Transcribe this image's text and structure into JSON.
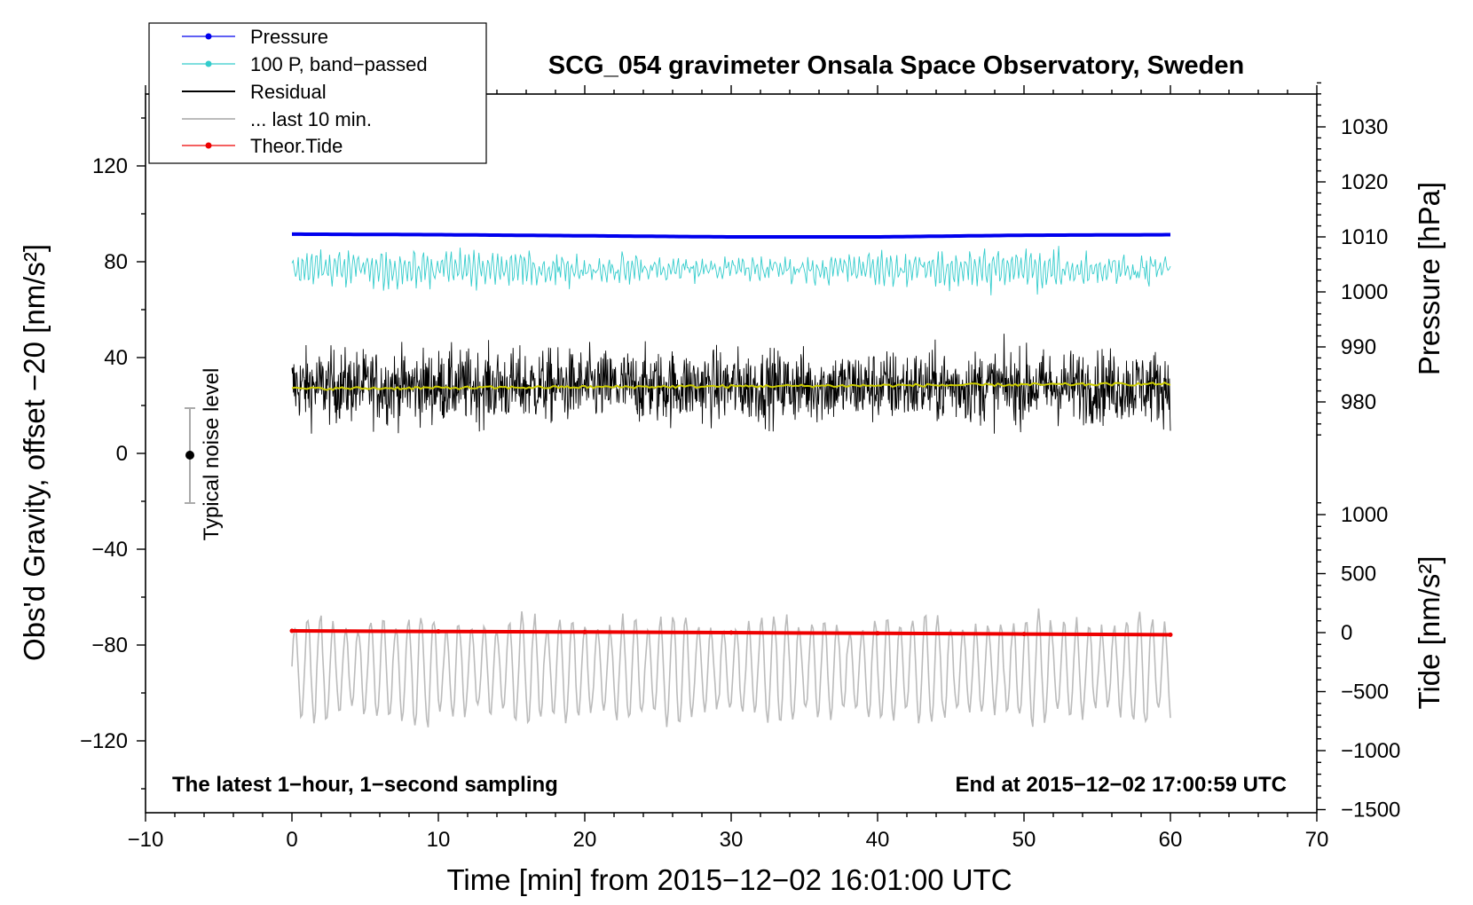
{
  "chart_data": {
    "type": "line",
    "title": "SCG_054 gravimeter Onsala Space Observatory, Sweden",
    "xlabel": "Time [min] from 2015−12−02 16:01:00 UTC",
    "ylabel_left": "Obs'd Gravity, offset −20 [nm/s²]",
    "ylabel_pressure": "Pressure [hPa]",
    "ylabel_tide": "Tide [nm/s²]",
    "xlim": [
      -10,
      70
    ],
    "ylim_left": [
      -150,
      150
    ],
    "x_ticks": [
      "−10",
      "0",
      "10",
      "20",
      "30",
      "40",
      "50",
      "60",
      "70"
    ],
    "y_ticks_left": [
      "120",
      "80",
      "40",
      "0",
      "−40",
      "−80",
      "−120"
    ],
    "pressure_ticks": [
      "1030",
      "1020",
      "1010",
      "1000",
      "990",
      "980"
    ],
    "tide_ticks": [
      "1000",
      "500",
      "0",
      "−500",
      "−1000",
      "−1500"
    ],
    "annotation_left": "The latest 1−hour, 1−second sampling",
    "annotation_right": "End at 2015−12−02 17:00:59 UTC",
    "noise_label": "Typical noise level",
    "noise_bar": {
      "x": -7,
      "center": 0,
      "half_range": 20
    },
    "legend": {
      "position": "top-left",
      "entries": [
        "Pressure",
        "100 P, band−passed",
        "Residual",
        "... last 10 min.",
        "Theor.Tide"
      ]
    },
    "series": [
      {
        "name": "Pressure",
        "color": "#0000ee",
        "x_range": [
          0,
          60
        ],
        "pressure_hPa": [
          1010.5,
          1010.4,
          1010.2,
          1010.0,
          1010.0,
          1010.3,
          1010.4
        ],
        "left_axis_equiv": 100
      },
      {
        "name": "100 P, band-passed",
        "color": "#33cccc",
        "x_range": [
          0,
          60
        ],
        "mean": 77,
        "amplitude": 10
      },
      {
        "name": "Residual",
        "color": "#000000",
        "x_range": [
          0,
          60
        ],
        "mean": 28,
        "amplitude": 18
      },
      {
        "name": "Residual (smoothed)",
        "color": "#cccc00",
        "x_range": [
          0,
          60
        ],
        "values_start_end": [
          27,
          29
        ]
      },
      {
        "name": "... last 10 min.",
        "color": "#bbbbbb",
        "x_range": [
          0,
          60
        ],
        "mean": -90,
        "amplitude": 15
      },
      {
        "name": "Theor.Tide",
        "color": "#ee0000",
        "x": [
          0,
          10,
          20,
          30,
          40,
          50,
          60
        ],
        "tide_nm_s2": [
          15,
          10,
          5,
          0,
          -6,
          -12,
          -18
        ]
      }
    ],
    "colors": {
      "pressure": "#0000ee",
      "bandpassed": "#33cccc",
      "residual": "#000000",
      "smoothed": "#cccc00",
      "last10": "#bbbbbb",
      "tide": "#ee0000",
      "noise_bar": "#aaaaaa"
    }
  }
}
